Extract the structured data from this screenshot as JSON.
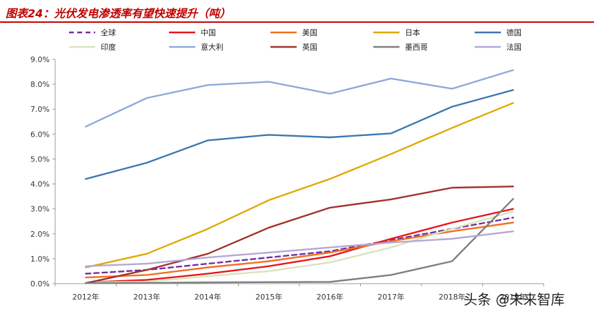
{
  "title": "图表24：光伏发电渗透率有望快速提升（吨）",
  "watermark": "头条 @未来智库",
  "chart_data": {
    "type": "line",
    "x": [
      "2012年",
      "2013年",
      "2014年",
      "2015年",
      "2016年",
      "2017年",
      "2018年",
      "2019年"
    ],
    "ylim": [
      0,
      9
    ],
    "yticks": [
      "0.0%",
      "1.0%",
      "2.0%",
      "3.0%",
      "4.0%",
      "5.0%",
      "6.0%",
      "7.0%",
      "8.0%",
      "9.0%"
    ],
    "grid": false,
    "legend": "top",
    "series": [
      {
        "name": "全球",
        "color": "#7030a0",
        "dash": true,
        "values": [
          0.4,
          0.55,
          0.8,
          1.05,
          1.3,
          1.75,
          2.2,
          2.65
        ]
      },
      {
        "name": "中国",
        "color": "#e8141c",
        "dash": false,
        "values": [
          0.05,
          0.15,
          0.4,
          0.7,
          1.1,
          1.8,
          2.45,
          3.0
        ]
      },
      {
        "name": "美国",
        "color": "#f07020",
        "dash": false,
        "values": [
          0.25,
          0.35,
          0.65,
          0.9,
          1.25,
          1.7,
          2.1,
          2.45
        ]
      },
      {
        "name": "日本",
        "color": "#e0a800",
        "dash": false,
        "values": [
          0.65,
          1.2,
          2.2,
          3.35,
          4.2,
          5.2,
          6.25,
          7.25
        ]
      },
      {
        "name": "德国",
        "color": "#3c76b0",
        "dash": false,
        "values": [
          4.2,
          4.85,
          5.75,
          5.97,
          5.87,
          6.03,
          7.1,
          7.77
        ]
      },
      {
        "name": "印度",
        "color": "#d8e4bc",
        "dash": false,
        "values": [
          0.05,
          0.08,
          0.3,
          0.5,
          0.85,
          1.45,
          2.2,
          2.9
        ]
      },
      {
        "name": "意大利",
        "color": "#8ea9db",
        "dash": false,
        "values": [
          6.3,
          7.45,
          7.97,
          8.1,
          7.62,
          8.23,
          7.82,
          8.57
        ]
      },
      {
        "name": "英国",
        "color": "#a0322c",
        "dash": false,
        "values": [
          0.02,
          0.55,
          1.2,
          2.25,
          3.05,
          3.38,
          3.85,
          3.9
        ]
      },
      {
        "name": "墨西哥",
        "color": "#7f7f7f",
        "dash": false,
        "values": [
          0.02,
          0.03,
          0.05,
          0.06,
          0.07,
          0.35,
          0.9,
          3.4
        ]
      },
      {
        "name": "法国",
        "color": "#b4a7d6",
        "dash": false,
        "values": [
          0.7,
          0.8,
          1.05,
          1.25,
          1.45,
          1.65,
          1.8,
          2.1
        ]
      }
    ]
  }
}
